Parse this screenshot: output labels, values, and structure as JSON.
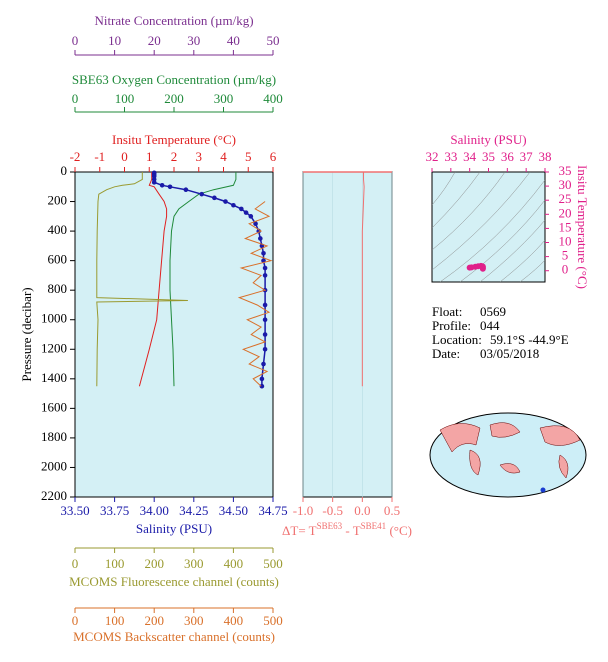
{
  "chart_data": [
    {
      "type": "profile",
      "ylabel": "Pressure (decibar)",
      "ylim": [
        0,
        2200
      ],
      "yticks": [
        0,
        200,
        400,
        600,
        800,
        1000,
        1200,
        1400,
        1600,
        1800,
        2000,
        2200
      ],
      "axes": [
        {
          "label": "Nitrate Concentration (µm/kg)",
          "color": "#7b2f8f",
          "xlim": [
            0,
            50
          ],
          "xticks": [
            0,
            10,
            20,
            30,
            40,
            50
          ]
        },
        {
          "label": "SBE63 Oxygen Concentration (µm/kg)",
          "color": "#1f8a3a",
          "xlim": [
            0,
            400
          ],
          "xticks": [
            0,
            100,
            200,
            300,
            400
          ],
          "series": {
            "pressure": [
              0,
              50,
              90,
              120,
              150,
              200,
              250,
              300,
              400,
              600,
              800,
              1000,
              1200,
              1450
            ],
            "values": [
              325,
              325,
              320,
              280,
              250,
              230,
              210,
              200,
              195,
              192,
              192,
              195,
              198,
              200
            ]
          }
        },
        {
          "label": "Insitu Temperature (°C)",
          "color": "#e02020",
          "xlim": [
            -2,
            6
          ],
          "xticks": [
            -2,
            -1,
            0,
            1,
            2,
            3,
            4,
            5,
            6
          ],
          "series": {
            "pressure": [
              0,
              50,
              90,
              100,
              150,
              200,
              250,
              300,
              400,
              600,
              800,
              1000,
              1200,
              1450
            ],
            "values": [
              1.1,
              1.1,
              1.0,
              1.2,
              1.4,
              1.6,
              1.7,
              1.7,
              1.6,
              1.5,
              1.4,
              1.3,
              1.0,
              0.6
            ]
          }
        },
        {
          "label": "Salinity (PSU)",
          "color": "#1a1aa8",
          "xlim": [
            33.5,
            34.75
          ],
          "xticks": [
            {
              "value": 33.5,
              "label": "33.50"
            },
            {
              "value": 33.75,
              "label": "33.75"
            },
            {
              "value": 34,
              "label": "34.00"
            },
            {
              "value": 34.25,
              "label": "34.25"
            },
            {
              "value": 34.5,
              "label": "34.50"
            },
            {
              "value": 34.75,
              "label": "34.75"
            }
          ],
          "markers": true,
          "series": {
            "pressure": [
              5,
              10,
              20,
              30,
              50,
              70,
              90,
              100,
              120,
              150,
              175,
              200,
              225,
              250,
              275,
              300,
              350,
              400,
              450,
              500,
              550,
              600,
              650,
              700,
              800,
              900,
              1000,
              1100,
              1200,
              1300,
              1400,
              1450
            ],
            "values": [
              34.0,
              34.0,
              34.0,
              34.0,
              34.0,
              34.0,
              34.05,
              34.1,
              34.2,
              34.3,
              34.38,
              34.45,
              34.5,
              34.55,
              34.58,
              34.61,
              34.64,
              34.66,
              34.67,
              34.68,
              34.69,
              34.69,
              34.7,
              34.7,
              34.7,
              34.7,
              34.7,
              34.7,
              34.7,
              34.69,
              34.68,
              34.68
            ]
          }
        },
        {
          "label": "MCOMS Fluorescence channel (counts)",
          "color": "#9a9a30",
          "xlim": [
            0,
            500
          ],
          "xticks": [
            0,
            100,
            200,
            300,
            400,
            500
          ],
          "series": {
            "pressure": [
              0,
              50,
              80,
              90,
              100,
              120,
              150,
              200,
              400,
              600,
              850,
              870,
              880,
              1000,
              1200,
              1450
            ],
            "values": [
              170,
              170,
              150,
              120,
              100,
              80,
              60,
              58,
              56,
              55,
              55,
              285,
              55,
              58,
              56,
              55
            ]
          }
        },
        {
          "label": "MCOMS Backscatter channel (counts)",
          "color": "#d9702a",
          "xlim": [
            0,
            500
          ],
          "xticks": [
            0,
            100,
            200,
            300,
            400,
            500
          ],
          "series": {
            "pressure": [
              200,
              250,
              300,
              350,
              400,
              450,
              500,
              550,
              600,
              650,
              700,
              750,
              800,
              850,
              900,
              950,
              1000,
              1050,
              1100,
              1150,
              1200,
              1250,
              1300,
              1350,
              1400,
              1450
            ],
            "values": [
              480,
              455,
              490,
              440,
              470,
              430,
              485,
              445,
              495,
              420,
              470,
              450,
              480,
              415,
              460,
              490,
              435,
              470,
              445,
              480,
              425,
              465,
              440,
              485,
              450,
              470
            ]
          }
        }
      ]
    },
    {
      "type": "profile-diff",
      "xlabel": [
        "ΔT= T",
        "SBE63",
        " - T",
        "SBE41",
        " (°C)"
      ],
      "color": "#f07070",
      "xlim": [
        -1,
        0.5
      ],
      "xticks": [
        {
          "value": -1,
          "label": "-1.0"
        },
        {
          "value": -0.5,
          "label": "-0.5"
        },
        {
          "value": 0,
          "label": "0.0"
        },
        {
          "value": 0.5,
          "label": "0.5"
        }
      ],
      "ylim": [
        0,
        2200
      ],
      "series": {
        "pressure": [
          0,
          50,
          100,
          200,
          400,
          600,
          800,
          1000,
          1200,
          1450
        ],
        "values": [
          0.02,
          0.02,
          0.03,
          0.02,
          0.0,
          0.0,
          0.0,
          0.0,
          0.0,
          0.0
        ]
      }
    },
    {
      "type": "scatter",
      "xlabel": "Salinity (PSU)",
      "ylabel": "Insitu Temperature (°C)",
      "color": "#e0208a",
      "xlim": [
        32,
        38
      ],
      "xticks": [
        32,
        33,
        34,
        35,
        36,
        37,
        38
      ],
      "ylim": [
        -4,
        35
      ],
      "yticks": [
        0,
        5,
        10,
        15,
        20,
        25,
        30,
        35
      ],
      "x": [
        34.0,
        34.1,
        34.3,
        34.45,
        34.6,
        34.66,
        34.69,
        34.7,
        34.7,
        34.7
      ],
      "values": [
        1.1,
        1.2,
        1.4,
        1.6,
        1.7,
        1.6,
        1.5,
        1.4,
        1.0,
        0.7
      ]
    }
  ],
  "info": {
    "rows": [
      [
        "Float:",
        "0569"
      ],
      [
        "Profile:",
        "044"
      ],
      [
        "Location:",
        "59.1°S  -44.9°E"
      ],
      [
        "Date:",
        "03/05/2018"
      ]
    ]
  }
}
